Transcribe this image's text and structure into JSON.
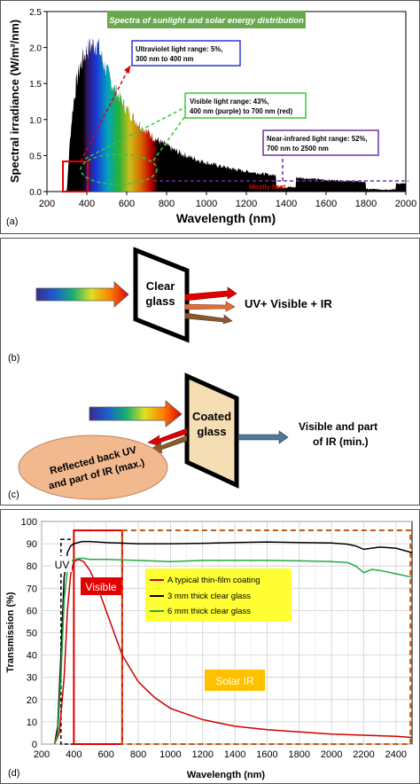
{
  "panel_a": {
    "title": "Spectra of sunlight and solar energy distribution",
    "ylabel": "Spectral irradiance (W/m²/nm)",
    "xlabel": "Wavelength (nm)",
    "xticks": [
      "200",
      "400",
      "600",
      "800",
      "1000",
      "1200",
      "1400",
      "1600",
      "1800",
      "2000"
    ],
    "yticks": [
      "0.0",
      "0.5",
      "1.0",
      "1.5",
      "2.0",
      "2.5"
    ],
    "callout_uv": [
      "Ultraviolet light range: 5%,",
      "300 nm to 400 nm"
    ],
    "callout_visible": [
      "Visible light range: 43%,",
      "400 nm (purple) to 700 nm (red)"
    ],
    "callout_nir": [
      "Near-infrared light range: 52%,",
      "700 nm to 2500 nm"
    ],
    "mostly_heat": "Mostly heat",
    "label": "(a)",
    "colors": {
      "title_bg": "#6aa84f",
      "uv_border": "#3333cc",
      "vis_border": "#33cc33",
      "nir_border": "#7030a0"
    }
  },
  "panel_b": {
    "glass_label": [
      "Clear",
      "glass"
    ],
    "output_label": "UV+ Visible + IR",
    "label": "(b)"
  },
  "panel_c": {
    "glass_label": [
      "Coated",
      "glass"
    ],
    "output_label": [
      "Visible and part",
      "of IR (min.)"
    ],
    "reflected_label": [
      "Reflected back UV",
      "and part of IR (max.)"
    ],
    "label": "(c)",
    "colors": {
      "glass_fill": "#f5deb3",
      "reflect_bg": "#f2b98e"
    }
  },
  "panel_d": {
    "ylabel": "Transmission (%)",
    "xlabel": "Wavelength (nm)",
    "label": "(d)",
    "region_uv": "UV",
    "region_visible": "Visible",
    "region_ir": "Solar IR",
    "legend": [
      "A typical thin-film coating",
      "3 mm thick clear glass",
      "6 mm thick clear glass"
    ],
    "colors": {
      "coating": "#cc0000",
      "glass3": "#000000",
      "glass6": "#22aa44",
      "legend_bg": "#ffff33",
      "ir_label_bg": "#ffc000",
      "vis_box": "#e00000",
      "ir_box": "#c55a11"
    }
  },
  "chart_data": {
    "type": "line",
    "title": "",
    "xlabel": "Wavelength (nm)",
    "ylabel": "Transmission (%)",
    "xlim": [
      200,
      2500
    ],
    "ylim": [
      0,
      100
    ],
    "xticks": [
      200,
      400,
      600,
      800,
      1000,
      1200,
      1400,
      1600,
      1800,
      2000,
      2200,
      2400
    ],
    "yticks": [
      0,
      10,
      20,
      30,
      40,
      50,
      60,
      70,
      80,
      90,
      100
    ],
    "grid": true,
    "legend_position": "center-right",
    "series": [
      {
        "name": "A typical thin-film coating",
        "x": [
          280,
          310,
          340,
          360,
          380,
          400,
          430,
          460,
          500,
          550,
          600,
          650,
          700,
          800,
          900,
          1000,
          1200,
          1400,
          1600,
          1800,
          2000,
          2200,
          2400,
          2500
        ],
        "y": [
          0,
          5,
          30,
          60,
          76,
          82,
          83,
          82,
          78,
          70,
          60,
          50,
          40,
          28,
          21,
          16,
          11,
          8,
          6.5,
          5.5,
          4.5,
          4,
          3.5,
          3
        ]
      },
      {
        "name": "3 mm thick clear glass",
        "x": [
          280,
          300,
          320,
          340,
          360,
          380,
          400,
          450,
          500,
          600,
          800,
          1000,
          1200,
          1400,
          1600,
          1800,
          2000,
          2100,
          2150,
          2200,
          2300,
          2400,
          2500
        ],
        "y": [
          0,
          8,
          40,
          75,
          86,
          89,
          90,
          91,
          91,
          90.5,
          90,
          90,
          90.2,
          90.5,
          90.8,
          90.5,
          90.3,
          89.8,
          89,
          87.5,
          88.5,
          88,
          86
        ]
      },
      {
        "name": "6 mm thick clear glass",
        "x": [
          280,
          300,
          320,
          340,
          360,
          380,
          400,
          450,
          500,
          600,
          800,
          1000,
          1200,
          1400,
          1600,
          1800,
          2000,
          2100,
          2150,
          2200,
          2250,
          2300,
          2400,
          2500
        ],
        "y": [
          0,
          5,
          30,
          65,
          78,
          82,
          83,
          83.5,
          83,
          83,
          82.5,
          82,
          82.5,
          82.5,
          82.5,
          82.3,
          82,
          81.5,
          80,
          77,
          78.5,
          78,
          76.5,
          75
        ]
      }
    ]
  }
}
